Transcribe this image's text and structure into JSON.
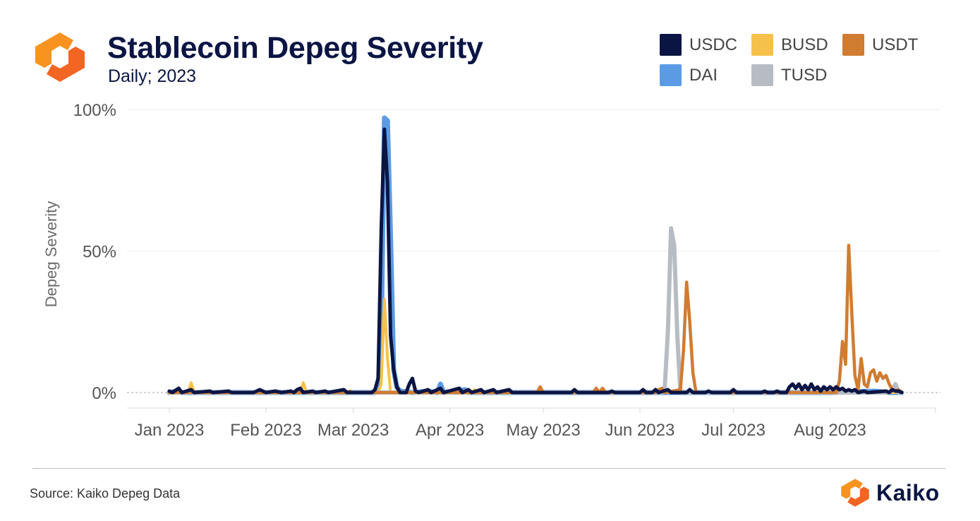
{
  "header": {
    "title": "Stablecoin Depeg Severity",
    "subtitle": "Daily; 2023"
  },
  "footer": {
    "source": "Source: Kaiko Depeg Data",
    "brand": "Kaiko"
  },
  "icons": {
    "header_logo": "kaiko-logo-icon",
    "footer_logo": "kaiko-logo-icon"
  },
  "colors": {
    "title": "#0b1544",
    "brand_orange": "#f7931e",
    "brand_orange_dark": "#f26522"
  },
  "legend": [
    {
      "name": "USDC",
      "color": "#0b1544"
    },
    {
      "name": "BUSD",
      "color": "#f6c14b"
    },
    {
      "name": "USDT",
      "color": "#d07c31"
    },
    {
      "name": "DAI",
      "color": "#5b9be4"
    },
    {
      "name": "TUSD",
      "color": "#b7bcc4"
    }
  ],
  "chart_data": {
    "type": "line",
    "title": "Stablecoin Depeg Severity",
    "subtitle": "Daily; 2023",
    "ylabel": "Depeg Severity",
    "xlabel": "",
    "x_range": [
      "2023-01-01",
      "2023-08-31"
    ],
    "ylim": [
      0,
      100
    ],
    "y_ticks": [
      0,
      50,
      100
    ],
    "y_tick_labels": [
      "0%",
      "50%",
      "100%"
    ],
    "x_ticks": [
      "2023-01-01",
      "2023-02-01",
      "2023-03-01",
      "2023-04-01",
      "2023-05-01",
      "2023-06-01",
      "2023-07-01",
      "2023-08-01"
    ],
    "x_tick_labels": [
      "Jan 2023",
      "Feb 2023",
      "Mar 2023",
      "Apr 2023",
      "May 2023",
      "Jun 2023",
      "Jul 2023",
      "Aug 2023"
    ],
    "grid": true,
    "legend_position": "top-right",
    "series": [
      {
        "name": "DAI",
        "color": "#5b9be4",
        "points": [
          [
            "2023-01-01",
            0
          ],
          [
            "2023-01-03",
            0.5
          ],
          [
            "2023-01-05",
            0
          ],
          [
            "2023-02-01",
            0
          ],
          [
            "2023-03-08",
            0
          ],
          [
            "2023-03-09",
            1
          ],
          [
            "2023-03-10",
            20
          ],
          [
            "2023-03-11",
            97
          ],
          [
            "2023-03-12",
            96
          ],
          [
            "2023-03-13",
            55
          ],
          [
            "2023-03-14",
            8
          ],
          [
            "2023-03-15",
            2
          ],
          [
            "2023-03-16",
            0.5
          ],
          [
            "2023-03-20",
            0
          ],
          [
            "2023-03-25",
            0.5
          ],
          [
            "2023-03-28",
            0
          ],
          [
            "2023-03-29",
            3
          ],
          [
            "2023-03-30",
            0
          ],
          [
            "2023-04-06",
            1
          ],
          [
            "2023-04-07",
            0
          ],
          [
            "2023-06-01",
            0
          ],
          [
            "2023-08-01",
            0
          ],
          [
            "2023-08-15",
            0.5
          ],
          [
            "2023-08-20",
            0
          ],
          [
            "2023-08-24",
            0
          ]
        ]
      },
      {
        "name": "BUSD",
        "color": "#f6c14b",
        "points": [
          [
            "2023-01-01",
            0
          ],
          [
            "2023-01-07",
            0
          ],
          [
            "2023-01-08",
            3.5
          ],
          [
            "2023-01-09",
            0
          ],
          [
            "2023-02-12",
            0
          ],
          [
            "2023-02-13",
            3.5
          ],
          [
            "2023-02-14",
            0
          ],
          [
            "2023-03-09",
            0
          ],
          [
            "2023-03-10",
            3
          ],
          [
            "2023-03-11",
            33
          ],
          [
            "2023-03-12",
            12
          ],
          [
            "2023-03-13",
            0
          ],
          [
            "2023-04-08",
            0
          ],
          [
            "2023-04-09",
            1
          ],
          [
            "2023-04-10",
            0
          ],
          [
            "2023-08-24",
            0
          ]
        ]
      },
      {
        "name": "TUSD",
        "color": "#b7bcc4",
        "points": [
          [
            "2023-01-01",
            0
          ],
          [
            "2023-06_08",
            0
          ],
          [
            "2023-06-09",
            2
          ],
          [
            "2023-06-10",
            22
          ],
          [
            "2023-06-11",
            58
          ],
          [
            "2023-06-12",
            52
          ],
          [
            "2023-06-13",
            20
          ],
          [
            "2023-06-14",
            0
          ],
          [
            "2023-08-01",
            0
          ],
          [
            "2023-08-20",
            0
          ],
          [
            "2023-08-21",
            1
          ],
          [
            "2023-08-22",
            3
          ],
          [
            "2023-08-23",
            0
          ],
          [
            "2023-08-24",
            0
          ]
        ]
      },
      {
        "name": "USDT",
        "color": "#d07c31",
        "points": [
          [
            "2023-01-01",
            0
          ],
          [
            "2023-02-27",
            0
          ],
          [
            "2023-02-28",
            0.5
          ],
          [
            "2023-03-01",
            0
          ],
          [
            "2023-04-29",
            0
          ],
          [
            "2023-04-30",
            2
          ],
          [
            "2023-05-01",
            0
          ],
          [
            "2023-05-17",
            0
          ],
          [
            "2023-05-18",
            1.5
          ],
          [
            "2023-05-19",
            0
          ],
          [
            "2023-05-20",
            1.5
          ],
          [
            "2023-05-21",
            0
          ],
          [
            "2023-06-06",
            0
          ],
          [
            "2023-06-07",
            1
          ],
          [
            "2023-06-08",
            1.5
          ],
          [
            "2023-06-09",
            0
          ],
          [
            "2023-06-14",
            1
          ],
          [
            "2023-06-15",
            15
          ],
          [
            "2023-06-16",
            39
          ],
          [
            "2023-06-17",
            25
          ],
          [
            "2023-06-18",
            7
          ],
          [
            "2023-06-19",
            0
          ],
          [
            "2023-06-22",
            0
          ],
          [
            "2023-06-23",
            0.5
          ],
          [
            "2023-06-24",
            0
          ],
          [
            "2023-08-01",
            0
          ],
          [
            "2023-08-03",
            0
          ],
          [
            "2023-08-04",
            4
          ],
          [
            "2023-08-05",
            18
          ],
          [
            "2023-08-06",
            10
          ],
          [
            "2023-08-07",
            52
          ],
          [
            "2023-08-08",
            28
          ],
          [
            "2023-08-09",
            6
          ],
          [
            "2023-08-10",
            1
          ],
          [
            "2023-08-11",
            12
          ],
          [
            "2023-08-12",
            3
          ],
          [
            "2023-08-13",
            2
          ],
          [
            "2023-08-14",
            7
          ],
          [
            "2023-08-15",
            8
          ],
          [
            "2023-08-16",
            4
          ],
          [
            "2023-08-17",
            7
          ],
          [
            "2023-08-18",
            5
          ],
          [
            "2023-08-19",
            6
          ],
          [
            "2023-08-20",
            3
          ],
          [
            "2023-08-21",
            1
          ],
          [
            "2023-08-22",
            0.5
          ],
          [
            "2023-08-23",
            1
          ],
          [
            "2023-08-24",
            0
          ]
        ]
      },
      {
        "name": "USDC",
        "color": "#0b1544",
        "points": [
          [
            "2023-01-01",
            0.5
          ],
          [
            "2023-01-02",
            0
          ],
          [
            "2023-01-04",
            1.5
          ],
          [
            "2023-01-05",
            0
          ],
          [
            "2023-01-08",
            1
          ],
          [
            "2023-01-09",
            0
          ],
          [
            "2023-01-14",
            0.5
          ],
          [
            "2023-01-15",
            0
          ],
          [
            "2023-01-20",
            0.5
          ],
          [
            "2023-01-21",
            0
          ],
          [
            "2023-01-28",
            0
          ],
          [
            "2023-01-30",
            1
          ],
          [
            "2023-02-01",
            0
          ],
          [
            "2023-02-04",
            0.5
          ],
          [
            "2023-02-06",
            0
          ],
          [
            "2023-02-09",
            0.5
          ],
          [
            "2023-02-10",
            0
          ],
          [
            "2023-02-11",
            1
          ],
          [
            "2023-02-12",
            1.5
          ],
          [
            "2023-02-13",
            0
          ],
          [
            "2023-02-16",
            0.5
          ],
          [
            "2023-02-17",
            0
          ],
          [
            "2023-02-20",
            0.5
          ],
          [
            "2023-02-21",
            0
          ],
          [
            "2023-02-26",
            1
          ],
          [
            "2023-02-27",
            0
          ],
          [
            "2023-03-07",
            0
          ],
          [
            "2023-03-08",
            1
          ],
          [
            "2023-03-09",
            5
          ],
          [
            "2023-03-10",
            58
          ],
          [
            "2023-03-11",
            93
          ],
          [
            "2023-03-12",
            74
          ],
          [
            "2023-03-13",
            20
          ],
          [
            "2023-03-14",
            8
          ],
          [
            "2023-03-15",
            2
          ],
          [
            "2023-03-16",
            0
          ],
          [
            "2023-03-18",
            0
          ],
          [
            "2023-03-19",
            3
          ],
          [
            "2023-03-20",
            5
          ],
          [
            "2023-03-21",
            0.5
          ],
          [
            "2023-03-22",
            0
          ],
          [
            "2023-03-25",
            1
          ],
          [
            "2023-03-26",
            0
          ],
          [
            "2023-03-29",
            1.5
          ],
          [
            "2023-03-30",
            0
          ],
          [
            "2023-04-04",
            1.5
          ],
          [
            "2023-04-05",
            0
          ],
          [
            "2023-04-07",
            1
          ],
          [
            "2023-04-08",
            0
          ],
          [
            "2023-04-11",
            1
          ],
          [
            "2023-04-12",
            0
          ],
          [
            "2023-04-15",
            1
          ],
          [
            "2023-04-16",
            0
          ],
          [
            "2023-04-20",
            1
          ],
          [
            "2023-04-21",
            0
          ],
          [
            "2023-05-10",
            0
          ],
          [
            "2023-05-11",
            1
          ],
          [
            "2023-05-12",
            0
          ],
          [
            "2023-05-22",
            0
          ],
          [
            "2023-05-23",
            0.5
          ],
          [
            "2023-05-24",
            0
          ],
          [
            "2023-06-01",
            0
          ],
          [
            "2023-06-02",
            1
          ],
          [
            "2023-06-03",
            0
          ],
          [
            "2023-06-05",
            0
          ],
          [
            "2023-06-06",
            1
          ],
          [
            "2023-06-07",
            0
          ],
          [
            "2023-06-10",
            1
          ],
          [
            "2023-06-11",
            0
          ],
          [
            "2023-06-16",
            0
          ],
          [
            "2023-06-17",
            1
          ],
          [
            "2023-06-18",
            0
          ],
          [
            "2023-06-22",
            0
          ],
          [
            "2023-06-23",
            0.5
          ],
          [
            "2023-06-24",
            0
          ],
          [
            "2023-06-30",
            0
          ],
          [
            "2023-07-01",
            1
          ],
          [
            "2023-07-02",
            0
          ],
          [
            "2023-07-10",
            0
          ],
          [
            "2023-07-11",
            0.5
          ],
          [
            "2023-07-12",
            0
          ],
          [
            "2023-07-14",
            0
          ],
          [
            "2023-07-15",
            0.5
          ],
          [
            "2023-07-16",
            0
          ],
          [
            "2023-07-18",
            0
          ],
          [
            "2023-07-19",
            2
          ],
          [
            "2023-07-20",
            3
          ],
          [
            "2023-07-21",
            1.5
          ],
          [
            "2023-07-22",
            3
          ],
          [
            "2023-07-23",
            1
          ],
          [
            "2023-07-24",
            2.5
          ],
          [
            "2023-07-25",
            1
          ],
          [
            "2023-07-26",
            3
          ],
          [
            "2023-07-27",
            1
          ],
          [
            "2023-07-28",
            2
          ],
          [
            "2023-07-29",
            0.5
          ],
          [
            "2023-07-30",
            2
          ],
          [
            "2023-07-31",
            1
          ],
          [
            "2023-08-01",
            2
          ],
          [
            "2023-08-02",
            1
          ],
          [
            "2023-08-03",
            2
          ],
          [
            "2023-08-04",
            1
          ],
          [
            "2023-08-05",
            1.5
          ],
          [
            "2023-08-06",
            0.5
          ],
          [
            "2023-08-07",
            1
          ],
          [
            "2023-08-08",
            0.5
          ],
          [
            "2023-08-09",
            1
          ],
          [
            "2023-08-10",
            0
          ],
          [
            "2023-08-12",
            0.5
          ],
          [
            "2023-08-13",
            0
          ],
          [
            "2023-08-19",
            0.5
          ],
          [
            "2023-08-20",
            0
          ],
          [
            "2023-08-21",
            1
          ],
          [
            "2023-08-22",
            0.5
          ],
          [
            "2023-08-23",
            0.5
          ],
          [
            "2023-08-24",
            0
          ]
        ]
      }
    ]
  }
}
